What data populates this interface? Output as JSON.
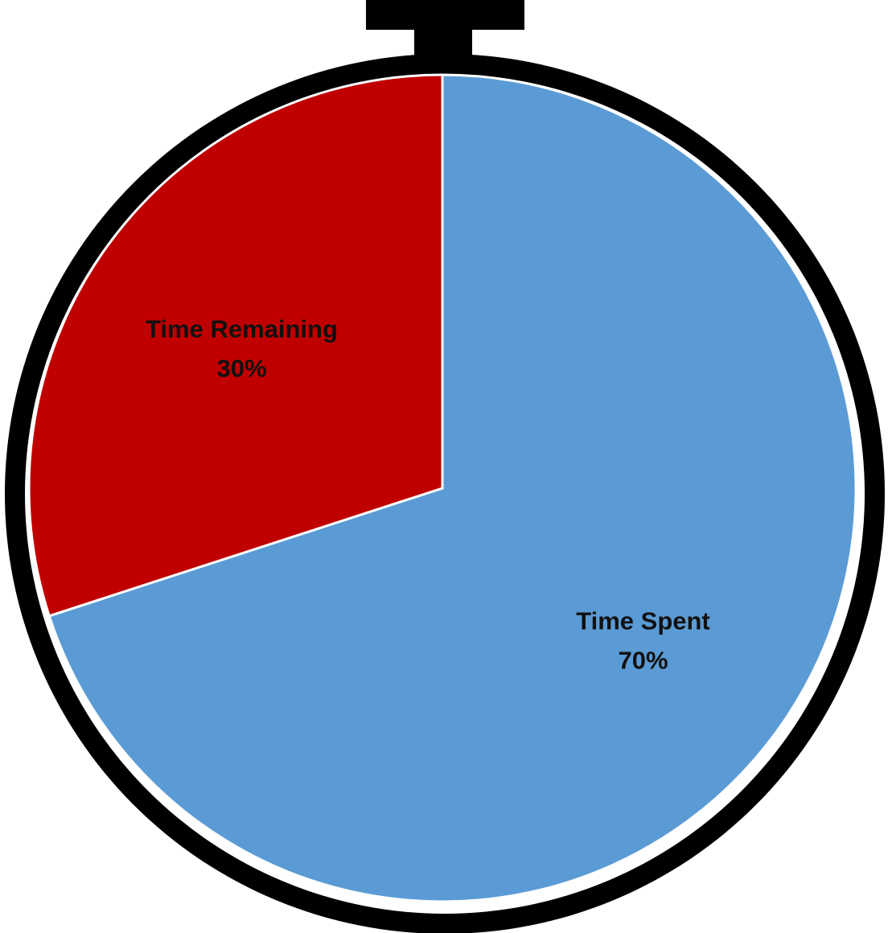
{
  "chart_data": {
    "type": "pie",
    "style": "stopwatch",
    "start_angle": "12 o'clock",
    "direction": "clockwise",
    "slices": [
      {
        "label": "Time Spent",
        "value": 70,
        "value_label": "70%",
        "color": "#5B9BD5"
      },
      {
        "label": "Time Remaining",
        "value": 30,
        "value_label": "30%",
        "color": "#C00000"
      }
    ],
    "legend": "none",
    "data_labels": "inside slices, label above percentage"
  },
  "colors": {
    "frame": "#000000",
    "slice_border": "#ffffff",
    "background": "#ffffff"
  }
}
